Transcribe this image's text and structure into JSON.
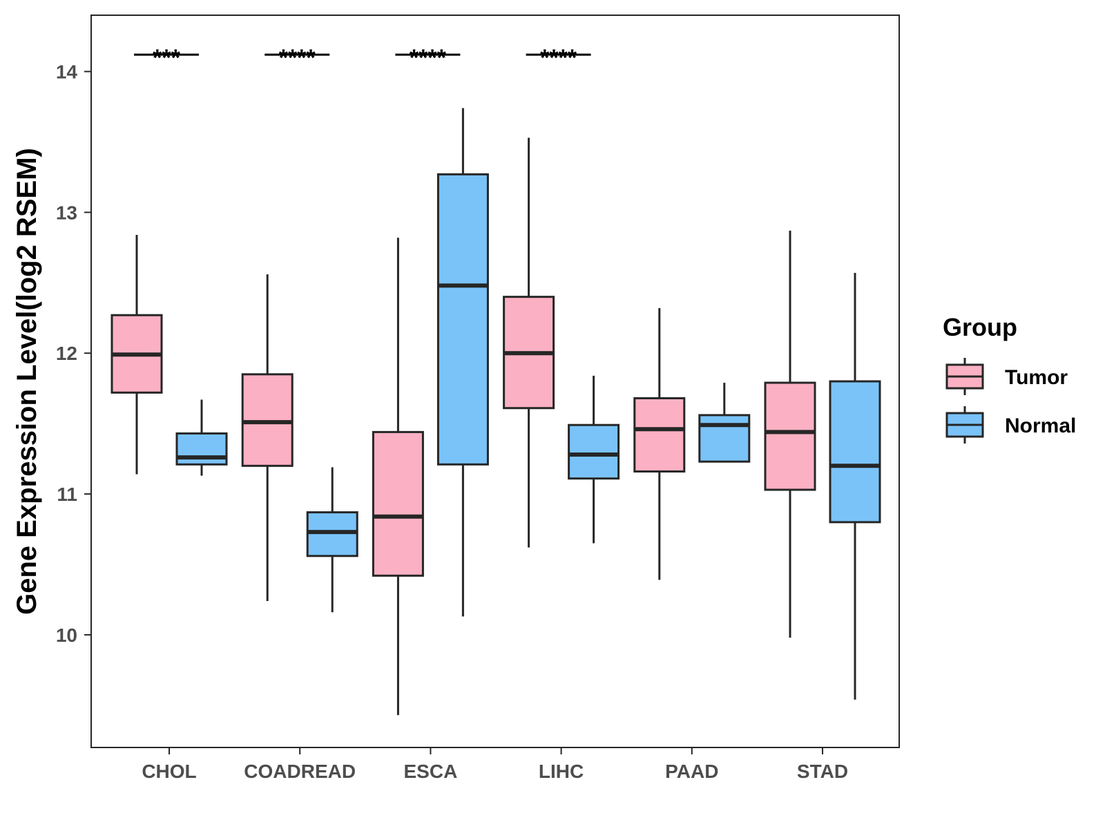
{
  "chart_data": {
    "type": "boxplot",
    "title": "",
    "xlabel": "",
    "ylabel": "Gene Expression Level(log2 RSEM)",
    "ylim": [
      9.2,
      14.4
    ],
    "yticks": [
      10,
      11,
      12,
      13,
      14
    ],
    "categories": [
      "CHOL",
      "COADREAD",
      "ESCA",
      "LIHC",
      "PAAD",
      "STAD"
    ],
    "legend": {
      "title": "Group",
      "position": "right",
      "entries": [
        "Tumor",
        "Normal"
      ]
    },
    "colors": {
      "Tumor": "#FBB1C3",
      "Normal": "#7AC3F9",
      "stroke": "#262626",
      "frame": "#262626"
    },
    "series": [
      {
        "name": "Tumor",
        "boxes": [
          {
            "category": "CHOL",
            "whisker_low": 11.14,
            "q1": 11.72,
            "median": 11.99,
            "q3": 12.27,
            "whisker_high": 12.84
          },
          {
            "category": "COADREAD",
            "whisker_low": 10.24,
            "q1": 11.2,
            "median": 11.51,
            "q3": 11.85,
            "whisker_high": 12.56
          },
          {
            "category": "ESCA",
            "whisker_low": 9.43,
            "q1": 10.42,
            "median": 10.84,
            "q3": 11.44,
            "whisker_high": 12.82
          },
          {
            "category": "LIHC",
            "whisker_low": 10.62,
            "q1": 11.61,
            "median": 12.0,
            "q3": 12.4,
            "whisker_high": 13.53
          },
          {
            "category": "PAAD",
            "whisker_low": 10.39,
            "q1": 11.16,
            "median": 11.46,
            "q3": 11.68,
            "whisker_high": 12.32
          },
          {
            "category": "STAD",
            "whisker_low": 9.98,
            "q1": 11.03,
            "median": 11.44,
            "q3": 11.79,
            "whisker_high": 12.87
          }
        ]
      },
      {
        "name": "Normal",
        "boxes": [
          {
            "category": "CHOL",
            "whisker_low": 11.13,
            "q1": 11.21,
            "median": 11.26,
            "q3": 11.43,
            "whisker_high": 11.67
          },
          {
            "category": "COADREAD",
            "whisker_low": 10.16,
            "q1": 10.56,
            "median": 10.73,
            "q3": 10.87,
            "whisker_high": 11.19
          },
          {
            "category": "ESCA",
            "whisker_low": 10.13,
            "q1": 11.21,
            "median": 12.48,
            "q3": 13.27,
            "whisker_high": 13.74
          },
          {
            "category": "LIHC",
            "whisker_low": 10.65,
            "q1": 11.11,
            "median": 11.28,
            "q3": 11.49,
            "whisker_high": 11.84
          },
          {
            "category": "PAAD",
            "whisker_low": 11.23,
            "q1": 11.23,
            "median": 11.49,
            "q3": 11.56,
            "whisker_high": 11.79
          },
          {
            "category": "STAD",
            "whisker_low": 9.54,
            "q1": 10.8,
            "median": 11.2,
            "q3": 11.8,
            "whisker_high": 12.57
          }
        ]
      }
    ],
    "annotations": [
      {
        "category": "CHOL",
        "label": "***",
        "y": 14.12
      },
      {
        "category": "COADREAD",
        "label": "****",
        "y": 14.12
      },
      {
        "category": "ESCA",
        "label": "****",
        "y": 14.12
      },
      {
        "category": "LIHC",
        "label": "****",
        "y": 14.12
      }
    ]
  }
}
